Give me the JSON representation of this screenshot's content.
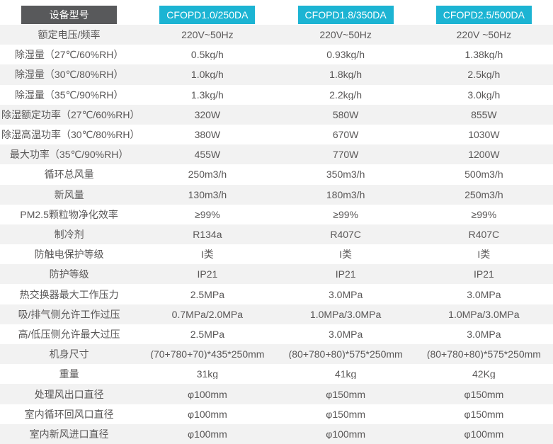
{
  "table": {
    "header": {
      "label": "设备型号",
      "models": [
        "CFOPD1.0/250DA",
        "CFOPD1.8/350DA",
        "CFOPD2.5/500DA"
      ]
    },
    "rows": [
      {
        "label": "额定电压/频率",
        "values": [
          "220V~50Hz",
          "220V~50Hz",
          "220V ~50Hz"
        ]
      },
      {
        "label": "除湿量（27℃/60%RH）",
        "values": [
          "0.5kg/h",
          "0.93kg/h",
          "1.38kg/h"
        ]
      },
      {
        "label": "除湿量（30℃/80%RH）",
        "values": [
          "1.0kg/h",
          "1.8kg/h",
          "2.5kg/h"
        ]
      },
      {
        "label": "除湿量（35℃/90%RH）",
        "values": [
          "1.3kg/h",
          "2.2kg/h",
          "3.0kg/h"
        ]
      },
      {
        "label": "除湿额定功率（27℃/60%RH）",
        "values": [
          "320W",
          "580W",
          "855W"
        ]
      },
      {
        "label": "除湿高温功率（30℃/80%RH）",
        "values": [
          "380W",
          "670W",
          "1030W"
        ]
      },
      {
        "label": "最大功率（35℃/90%RH）",
        "values": [
          "455W",
          "770W",
          "1200W"
        ]
      },
      {
        "label": "循环总风量",
        "values": [
          "250m3/h",
          "350m3/h",
          "500m3/h"
        ]
      },
      {
        "label": "新风量",
        "values": [
          "130m3/h",
          "180m3/h",
          "250m3/h"
        ]
      },
      {
        "label": "PM2.5颗粒物净化效率",
        "values": [
          "≥99%",
          "≥99%",
          "≥99%"
        ]
      },
      {
        "label": "制冷剂",
        "values": [
          "R134a",
          "R407C",
          "R407C"
        ]
      },
      {
        "label": "防触电保护等级",
        "values": [
          "I类",
          "I类",
          "I类"
        ]
      },
      {
        "label": "防护等级",
        "values": [
          "IP21",
          "IP21",
          "IP21"
        ]
      },
      {
        "label": "热交换器最大工作压力",
        "values": [
          "2.5MPa",
          "3.0MPa",
          "3.0MPa"
        ]
      },
      {
        "label": "吸/排气侧允许工作过压",
        "values": [
          "0.7MPa/2.0MPa",
          "1.0MPa/3.0MPa",
          "1.0MPa/3.0MPa"
        ]
      },
      {
        "label": "高/低压侧允许最大过压",
        "values": [
          "2.5MPa",
          "3.0MPa",
          "3.0MPa"
        ]
      },
      {
        "label": "机身尺寸",
        "values": [
          "(70+780+70)*435*250mm",
          "(80+780+80)*575*250mm",
          "(80+780+80)*575*250mm"
        ]
      },
      {
        "label": "重量",
        "values": [
          "31kg",
          "41kg",
          "42Kg"
        ]
      },
      {
        "label": "处理风出口直径",
        "values": [
          "φ100mm",
          "φ150mm",
          "φ150mm"
        ]
      },
      {
        "label": "室内循环回风口直径",
        "values": [
          "φ100mm",
          "φ150mm",
          "φ150mm"
        ]
      },
      {
        "label": "室内新风进口直径",
        "values": [
          "φ100mm",
          "φ100mm",
          "φ100mm"
        ]
      }
    ],
    "colors": {
      "header_dark": "#58595b",
      "header_cyan": "#1cb4d3",
      "row_alt": "#f2f2f2",
      "text": "#595757"
    }
  }
}
